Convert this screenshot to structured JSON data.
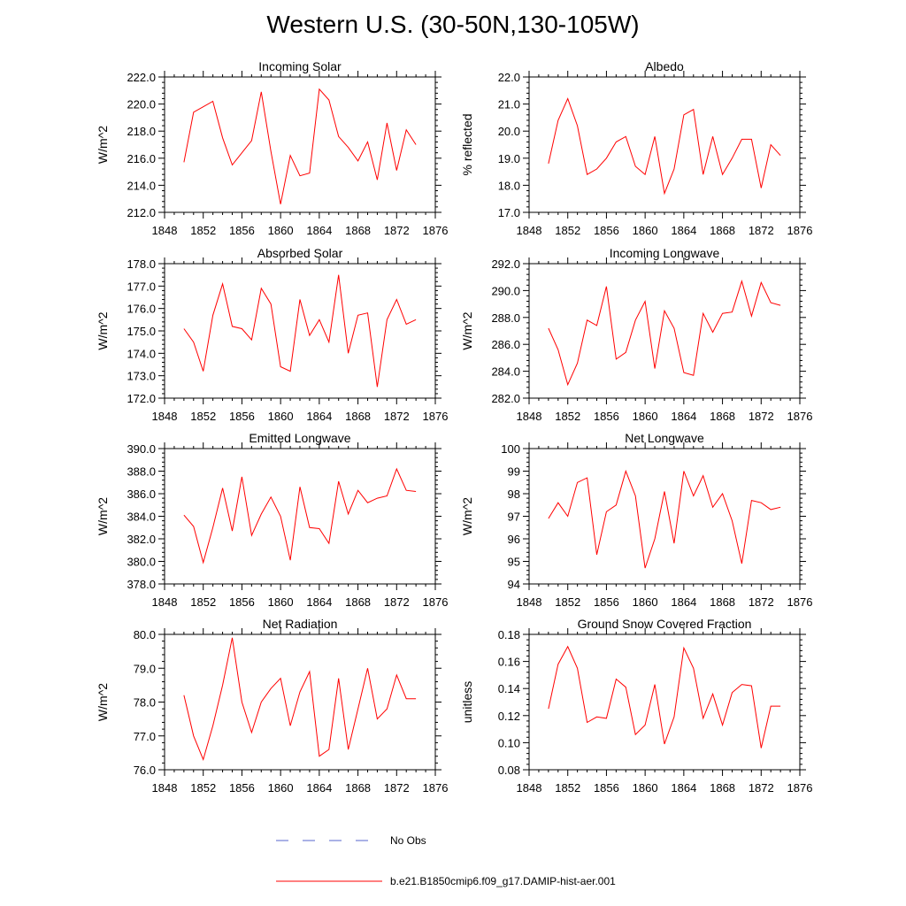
{
  "page_title": "Western U.S. (30-50N,130-105W)",
  "legend": {
    "obs_label": "No Obs",
    "obs_color": "#5566cc",
    "model_label": "b.e21.B1850cmip6.f09_g17.DAMIP-hist-aer.001",
    "model_color": "#ff0000"
  },
  "chart_data": [
    {
      "type": "line",
      "title": "Incoming Solar",
      "ylabel": "W/m^2",
      "xlim": [
        1848,
        1876
      ],
      "ylim": [
        212,
        222
      ],
      "xticks": [
        "1848",
        "1852",
        "1856",
        "1860",
        "1864",
        "1868",
        "1872",
        "1876"
      ],
      "yticks": [
        "212.0",
        "214.0",
        "216.0",
        "218.0",
        "220.0",
        "222.0"
      ],
      "x": [
        1850,
        1851,
        1852,
        1853,
        1854,
        1855,
        1856,
        1857,
        1858,
        1859,
        1860,
        1861,
        1862,
        1863,
        1864,
        1865,
        1866,
        1867,
        1868,
        1869,
        1870,
        1871,
        1872,
        1873,
        1874
      ],
      "series": [
        {
          "values": [
            215.7,
            219.4,
            219.8,
            220.2,
            217.5,
            215.5,
            216.4,
            217.3,
            220.9,
            216.5,
            212.6,
            216.2,
            214.7,
            214.9,
            221.1,
            220.3,
            217.6,
            216.8,
            215.8,
            217.2,
            214.4,
            218.6,
            215.1,
            218.1,
            217.0
          ]
        }
      ]
    },
    {
      "type": "line",
      "title": "Albedo",
      "ylabel": "% reflected",
      "xlim": [
        1848,
        1876
      ],
      "ylim": [
        17,
        22
      ],
      "xticks": [
        "1848",
        "1852",
        "1856",
        "1860",
        "1864",
        "1868",
        "1872",
        "1876"
      ],
      "yticks": [
        "17.0",
        "18.0",
        "19.0",
        "20.0",
        "21.0",
        "22.0"
      ],
      "x": [
        1850,
        1851,
        1852,
        1853,
        1854,
        1855,
        1856,
        1857,
        1858,
        1859,
        1860,
        1861,
        1862,
        1863,
        1864,
        1865,
        1866,
        1867,
        1868,
        1869,
        1870,
        1871,
        1872,
        1873,
        1874
      ],
      "series": [
        {
          "values": [
            18.8,
            20.4,
            21.2,
            20.2,
            18.4,
            18.6,
            19.0,
            19.6,
            19.8,
            18.7,
            18.4,
            19.8,
            17.7,
            18.6,
            20.6,
            20.8,
            18.4,
            19.8,
            18.4,
            19.0,
            19.7,
            19.7,
            17.9,
            19.5,
            19.1
          ]
        }
      ]
    },
    {
      "type": "line",
      "title": "Absorbed Solar",
      "ylabel": "W/m^2",
      "xlim": [
        1848,
        1876
      ],
      "ylim": [
        172,
        178
      ],
      "xticks": [
        "1848",
        "1852",
        "1856",
        "1860",
        "1864",
        "1868",
        "1872",
        "1876"
      ],
      "yticks": [
        "172.0",
        "173.0",
        "174.0",
        "175.0",
        "176.0",
        "177.0",
        "178.0"
      ],
      "x": [
        1850,
        1851,
        1852,
        1853,
        1854,
        1855,
        1856,
        1857,
        1858,
        1859,
        1860,
        1861,
        1862,
        1863,
        1864,
        1865,
        1866,
        1867,
        1868,
        1869,
        1870,
        1871,
        1872,
        1873,
        1874
      ],
      "series": [
        {
          "values": [
            175.1,
            174.5,
            173.2,
            175.7,
            177.1,
            175.2,
            175.1,
            174.6,
            176.9,
            176.2,
            173.4,
            173.2,
            176.4,
            174.8,
            175.5,
            174.5,
            177.5,
            174.0,
            175.7,
            175.8,
            172.5,
            175.5,
            176.4,
            175.3,
            175.5
          ]
        }
      ]
    },
    {
      "type": "line",
      "title": "Incoming Longwave",
      "ylabel": "W/m^2",
      "xlim": [
        1848,
        1876
      ],
      "ylim": [
        282,
        292
      ],
      "xticks": [
        "1848",
        "1852",
        "1856",
        "1860",
        "1864",
        "1868",
        "1872",
        "1876"
      ],
      "yticks": [
        "282.0",
        "284.0",
        "286.0",
        "288.0",
        "290.0",
        "292.0"
      ],
      "x": [
        1850,
        1851,
        1852,
        1853,
        1854,
        1855,
        1856,
        1857,
        1858,
        1859,
        1860,
        1861,
        1862,
        1863,
        1864,
        1865,
        1866,
        1867,
        1868,
        1869,
        1870,
        1871,
        1872,
        1873,
        1874
      ],
      "series": [
        {
          "values": [
            287.2,
            285.6,
            283.0,
            284.6,
            287.8,
            287.4,
            290.3,
            284.9,
            285.4,
            287.8,
            289.2,
            284.2,
            288.5,
            287.2,
            283.9,
            283.7,
            288.3,
            286.9,
            288.3,
            288.4,
            290.7,
            288.1,
            290.6,
            289.1,
            288.9
          ]
        }
      ]
    },
    {
      "type": "line",
      "title": "Emitted Longwave",
      "ylabel": "W/m^2",
      "xlim": [
        1848,
        1876
      ],
      "ylim": [
        378,
        390
      ],
      "xticks": [
        "1848",
        "1852",
        "1856",
        "1860",
        "1864",
        "1868",
        "1872",
        "1876"
      ],
      "yticks": [
        "378.0",
        "380.0",
        "382.0",
        "384.0",
        "386.0",
        "388.0",
        "390.0"
      ],
      "x": [
        1850,
        1851,
        1852,
        1853,
        1854,
        1855,
        1856,
        1857,
        1858,
        1859,
        1860,
        1861,
        1862,
        1863,
        1864,
        1865,
        1866,
        1867,
        1868,
        1869,
        1870,
        1871,
        1872,
        1873,
        1874
      ],
      "series": [
        {
          "values": [
            384.1,
            383.1,
            379.9,
            383.0,
            386.5,
            382.7,
            387.5,
            382.3,
            384.2,
            385.7,
            384.0,
            380.1,
            386.6,
            383.0,
            382.9,
            381.6,
            387.1,
            384.2,
            386.3,
            385.2,
            385.6,
            385.8,
            388.2,
            386.3,
            386.2
          ]
        }
      ]
    },
    {
      "type": "line",
      "title": "Net Longwave",
      "ylabel": "W/m^2",
      "xlim": [
        1848,
        1876
      ],
      "ylim": [
        94,
        100
      ],
      "xticks": [
        "1848",
        "1852",
        "1856",
        "1860",
        "1864",
        "1868",
        "1872",
        "1876"
      ],
      "yticks": [
        "94",
        "95",
        "96",
        "97",
        "98",
        "99",
        "100"
      ],
      "x": [
        1850,
        1851,
        1852,
        1853,
        1854,
        1855,
        1856,
        1857,
        1858,
        1859,
        1860,
        1861,
        1862,
        1863,
        1864,
        1865,
        1866,
        1867,
        1868,
        1869,
        1870,
        1871,
        1872,
        1873,
        1874
      ],
      "series": [
        {
          "values": [
            96.9,
            97.6,
            97.0,
            98.5,
            98.7,
            95.3,
            97.2,
            97.5,
            99.0,
            97.9,
            94.7,
            96.0,
            98.1,
            95.8,
            99.0,
            97.9,
            98.8,
            97.4,
            98.0,
            96.8,
            94.9,
            97.7,
            97.6,
            97.3,
            97.4
          ]
        }
      ]
    },
    {
      "type": "line",
      "title": "Net Radiation",
      "ylabel": "W/m^2",
      "xlim": [
        1848,
        1876
      ],
      "ylim": [
        76,
        80
      ],
      "xticks": [
        "1848",
        "1852",
        "1856",
        "1860",
        "1864",
        "1868",
        "1872",
        "1876"
      ],
      "yticks": [
        "76.0",
        "77.0",
        "78.0",
        "79.0",
        "80.0"
      ],
      "x": [
        1850,
        1851,
        1852,
        1853,
        1854,
        1855,
        1856,
        1857,
        1858,
        1859,
        1860,
        1861,
        1862,
        1863,
        1864,
        1865,
        1866,
        1867,
        1868,
        1869,
        1870,
        1871,
        1872,
        1873,
        1874
      ],
      "series": [
        {
          "values": [
            78.2,
            77.0,
            76.3,
            77.3,
            78.5,
            79.9,
            78.0,
            77.1,
            78.0,
            78.4,
            78.7,
            77.3,
            78.3,
            78.9,
            76.4,
            76.6,
            78.7,
            76.6,
            77.8,
            79.0,
            77.5,
            77.8,
            78.8,
            78.1,
            78.1
          ]
        }
      ]
    },
    {
      "type": "line",
      "title": "Ground Snow Covered Fraction",
      "ylabel": "unitless",
      "xlim": [
        1848,
        1876
      ],
      "ylim": [
        0.08,
        0.18
      ],
      "xticks": [
        "1848",
        "1852",
        "1856",
        "1860",
        "1864",
        "1868",
        "1872",
        "1876"
      ],
      "yticks": [
        "0.08",
        "0.10",
        "0.12",
        "0.14",
        "0.16",
        "0.18"
      ],
      "x": [
        1850,
        1851,
        1852,
        1853,
        1854,
        1855,
        1856,
        1857,
        1858,
        1859,
        1860,
        1861,
        1862,
        1863,
        1864,
        1865,
        1866,
        1867,
        1868,
        1869,
        1870,
        1871,
        1872,
        1873,
        1874
      ],
      "series": [
        {
          "values": [
            0.125,
            0.158,
            0.171,
            0.155,
            0.115,
            0.119,
            0.118,
            0.147,
            0.141,
            0.106,
            0.113,
            0.143,
            0.099,
            0.119,
            0.17,
            0.155,
            0.118,
            0.136,
            0.113,
            0.137,
            0.143,
            0.142,
            0.096,
            0.127,
            0.127
          ]
        }
      ]
    }
  ]
}
